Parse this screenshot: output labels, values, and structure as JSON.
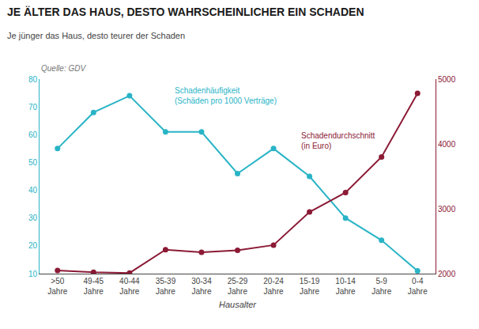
{
  "chart_data": {
    "type": "line",
    "title": "JE ÄLTER DAS HAUS, DESTO WAHRSCHEINLICHER EIN SCHADEN",
    "subtitle": "Je jünger das Haus, desto teurer der Schaden",
    "source": "Quelle: GDV",
    "xlabel": "Hausalter",
    "categories": [
      ">50\nJahre",
      "49-45\nJahre",
      "40-44\nJahre",
      "35-39\nJahre",
      "30-34\nJahre",
      "25-29\nJahre",
      "20-24\nJahre",
      "15-19\nJahre",
      "10-14\nJahre",
      "5-9\nJahre",
      "0-4\nJahre"
    ],
    "series": [
      {
        "color": "#29b4c6",
        "values": [
          55,
          68,
          74,
          61,
          61,
          46,
          55,
          45,
          30,
          22,
          11
        ],
        "annotation": "Schadenhäufigkeit\n(Schäden pro 1000 Verträge)",
        "marker": "circle"
      },
      {
        "color": "#8b1a35",
        "values": [
          2050,
          2020,
          2010,
          2370,
          2330,
          2360,
          2440,
          2950,
          3250,
          3800,
          4780
        ],
        "axis": "y2",
        "annotation": "Schadendurchschnitt\n(in Euro)",
        "marker": "circle"
      }
    ],
    "ylim": [
      10,
      80
    ],
    "yticks": [
      10,
      20,
      30,
      40,
      50,
      60,
      70,
      80
    ],
    "y2lim": [
      2000,
      5000
    ],
    "y2ticks": [
      2000,
      3000,
      4000,
      5000
    ],
    "grid": false
  }
}
